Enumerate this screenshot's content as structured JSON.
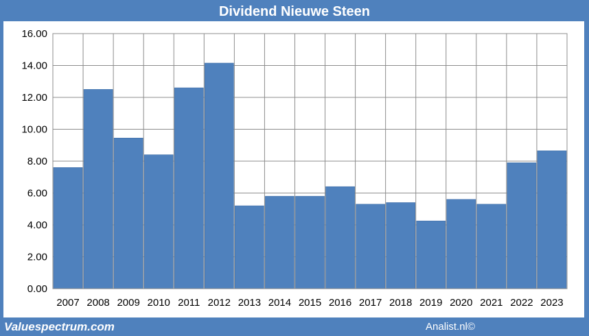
{
  "chart_data": {
    "type": "bar",
    "title": "Dividend Nieuwe Steen",
    "categories": [
      "2007",
      "2008",
      "2009",
      "2010",
      "2011",
      "2012",
      "2013",
      "2014",
      "2015",
      "2016",
      "2017",
      "2018",
      "2019",
      "2020",
      "2021",
      "2022",
      "2023"
    ],
    "values": [
      7.6,
      12.5,
      9.45,
      8.4,
      12.6,
      14.15,
      5.2,
      5.8,
      5.8,
      6.4,
      5.3,
      5.4,
      4.25,
      5.6,
      5.3,
      7.9,
      8.65
    ],
    "xlabel": "",
    "ylabel": "",
    "ylim": [
      0,
      16
    ],
    "yticks": [
      "0.00",
      "2.00",
      "4.00",
      "6.00",
      "8.00",
      "10.00",
      "12.00",
      "14.00",
      "16.00"
    ],
    "grid": true,
    "bar_color": "#4f81bd",
    "background_color": "#4f81bd"
  },
  "footer": {
    "left": "Valuespectrum.com",
    "right": "Analist.nl©"
  }
}
